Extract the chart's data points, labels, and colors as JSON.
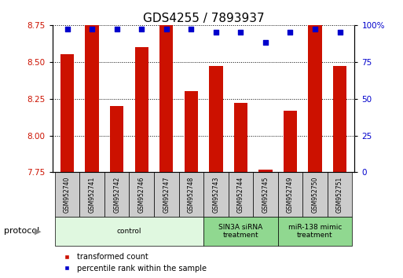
{
  "title": "GDS4255 / 7893937",
  "samples": [
    "GSM952740",
    "GSM952741",
    "GSM952742",
    "GSM952746",
    "GSM952747",
    "GSM952748",
    "GSM952743",
    "GSM952744",
    "GSM952745",
    "GSM952749",
    "GSM952750",
    "GSM952751"
  ],
  "transformed_counts": [
    8.55,
    8.75,
    8.2,
    8.6,
    8.75,
    8.3,
    8.47,
    8.22,
    7.77,
    8.17,
    8.75,
    8.47
  ],
  "percentile_ranks": [
    97,
    97,
    97,
    97,
    97,
    97,
    95,
    95,
    88,
    95,
    97,
    95
  ],
  "ylim_left": [
    7.75,
    8.75
  ],
  "ylim_right": [
    0,
    100
  ],
  "yticks_left": [
    7.75,
    8.0,
    8.25,
    8.5,
    8.75
  ],
  "yticks_right": [
    0,
    25,
    50,
    75,
    100
  ],
  "ytick_labels_right": [
    "0",
    "25",
    "50",
    "75",
    "100%"
  ],
  "bar_color": "#cc1100",
  "dot_color": "#0000cc",
  "grid_color": "black",
  "bg_color": "#ffffff",
  "sample_box_color": "#cccccc",
  "protocol_groups": [
    {
      "label": "control",
      "start": 0,
      "end": 5,
      "color": "#e0f8e0"
    },
    {
      "label": "SIN3A siRNA\ntreatment",
      "start": 6,
      "end": 8,
      "color": "#90d890"
    },
    {
      "label": "miR-138 mimic\ntreatment",
      "start": 9,
      "end": 11,
      "color": "#90d890"
    }
  ],
  "protocol_label": "protocol",
  "legend_items": [
    {
      "label": "transformed count",
      "color": "#cc1100"
    },
    {
      "label": "percentile rank within the sample",
      "color": "#0000cc"
    }
  ],
  "title_fontsize": 11,
  "tick_fontsize": 7.5,
  "label_fontsize": 7,
  "bar_width": 0.55,
  "xlim": [
    -0.6,
    11.6
  ]
}
